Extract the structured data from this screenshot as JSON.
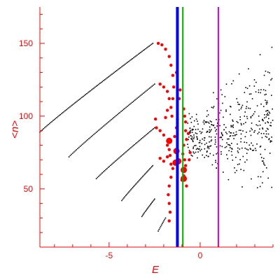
{
  "chart_data": {
    "type": "scatter",
    "title": "",
    "xlabel": "E",
    "ylabel": "<n>",
    "xlim": [
      -8.8,
      4.0
    ],
    "ylim": [
      10,
      175
    ],
    "x_ticks": [
      -5,
      0
    ],
    "y_ticks": [
      50,
      100,
      150
    ],
    "axis_color": "#ff0000",
    "grid": false,
    "legend": "none",
    "series": [
      {
        "style": "black-dots",
        "color": "#000000",
        "curves": [
          {
            "x_start": -8.8,
            "y_start": 89,
            "x_end": -2.6,
            "y_end": 150,
            "n": 95
          },
          {
            "x_start": -7.2,
            "y_start": 72,
            "x_end": -2.5,
            "y_end": 122,
            "n": 70
          },
          {
            "x_start": -5.7,
            "y_start": 57,
            "x_end": -2.5,
            "y_end": 92,
            "n": 50
          },
          {
            "x_start": -4.3,
            "y_start": 42,
            "x_end": -2.6,
            "y_end": 66,
            "n": 32
          },
          {
            "x_start": -3.2,
            "y_start": 31,
            "x_end": -2.5,
            "y_end": 43,
            "n": 16
          },
          {
            "x_start": -2.3,
            "y_start": 21,
            "x_end": -1.9,
            "y_end": 30,
            "n": 10
          }
        ],
        "cloud": {
          "x_range": [
            -0.7,
            4.0
          ],
          "y_center": 85,
          "y_spread": 15,
          "n": 420
        }
      },
      {
        "style": "red-dots",
        "color": "#ff0000",
        "points": [
          {
            "x": -2.3,
            "y": 150
          },
          {
            "x": -2.1,
            "y": 149
          },
          {
            "x": -1.9,
            "y": 146
          },
          {
            "x": -1.7,
            "y": 141
          },
          {
            "x": -1.6,
            "y": 135
          },
          {
            "x": -1.5,
            "y": 128
          },
          {
            "x": -1.45,
            "y": 120
          },
          {
            "x": -1.5,
            "y": 112
          },
          {
            "x": -2.2,
            "y": 122
          },
          {
            "x": -2.0,
            "y": 120
          },
          {
            "x": -1.8,
            "y": 117
          },
          {
            "x": -1.7,
            "y": 112
          },
          {
            "x": -1.6,
            "y": 106
          },
          {
            "x": -1.55,
            "y": 100
          },
          {
            "x": -1.8,
            "y": 104
          },
          {
            "x": -1.9,
            "y": 99
          },
          {
            "x": -2.4,
            "y": 92
          },
          {
            "x": -2.2,
            "y": 90
          },
          {
            "x": -2.0,
            "y": 87
          },
          {
            "x": -1.7,
            "y": 84
          },
          {
            "x": -2.2,
            "y": 71
          },
          {
            "x": -2.0,
            "y": 69
          },
          {
            "x": -1.8,
            "y": 72
          },
          {
            "x": -1.6,
            "y": 67
          },
          {
            "x": -1.5,
            "y": 64
          },
          {
            "x": -1.6,
            "y": 58
          },
          {
            "x": -1.7,
            "y": 52
          },
          {
            "x": -1.75,
            "y": 46
          },
          {
            "x": -1.7,
            "y": 40
          },
          {
            "x": -1.65,
            "y": 34
          },
          {
            "x": -1.7,
            "y": 28
          },
          {
            "x": -1.8,
            "y": 80
          },
          {
            "x": -1.7,
            "y": 77
          },
          {
            "x": -1.65,
            "y": 73
          },
          {
            "x": -1.4,
            "y": 86
          },
          {
            "x": -1.3,
            "y": 92
          },
          {
            "x": -1.25,
            "y": 98
          },
          {
            "x": -0.9,
            "y": 105
          },
          {
            "x": -0.85,
            "y": 100
          },
          {
            "x": -0.8,
            "y": 96
          },
          {
            "x": -0.8,
            "y": 90
          },
          {
            "x": -0.75,
            "y": 84
          },
          {
            "x": -0.9,
            "y": 80
          },
          {
            "x": -0.95,
            "y": 74
          },
          {
            "x": -0.85,
            "y": 70
          },
          {
            "x": -0.8,
            "y": 66
          },
          {
            "x": -0.95,
            "y": 63
          },
          {
            "x": -0.9,
            "y": 59
          },
          {
            "x": -1.0,
            "y": 56
          },
          {
            "x": -0.75,
            "y": 52
          },
          {
            "x": -0.6,
            "y": 70
          },
          {
            "x": -0.55,
            "y": 75
          },
          {
            "x": -0.65,
            "y": 88
          },
          {
            "x": -1.15,
            "y": 112
          },
          {
            "x": -1.1,
            "y": 118
          },
          {
            "x": -2.45,
            "y": 98
          },
          {
            "x": -1.3,
            "y": 130
          }
        ],
        "big_points": [
          {
            "x": -1.7,
            "y": 83
          },
          {
            "x": -1.3,
            "y": 76
          },
          {
            "x": -1.2,
            "y": 69
          },
          {
            "x": -0.9,
            "y": 63
          },
          {
            "x": -0.9,
            "y": 57
          },
          {
            "x": -1.35,
            "y": 68
          }
        ]
      }
    ],
    "vertical_lines": [
      {
        "x": -1.25,
        "color": "#0000ff",
        "width": 4
      },
      {
        "x": -0.95,
        "color": "#00aa00",
        "width": 2
      },
      {
        "x": 1.0,
        "color": "#dd00dd",
        "width": 2
      }
    ]
  }
}
